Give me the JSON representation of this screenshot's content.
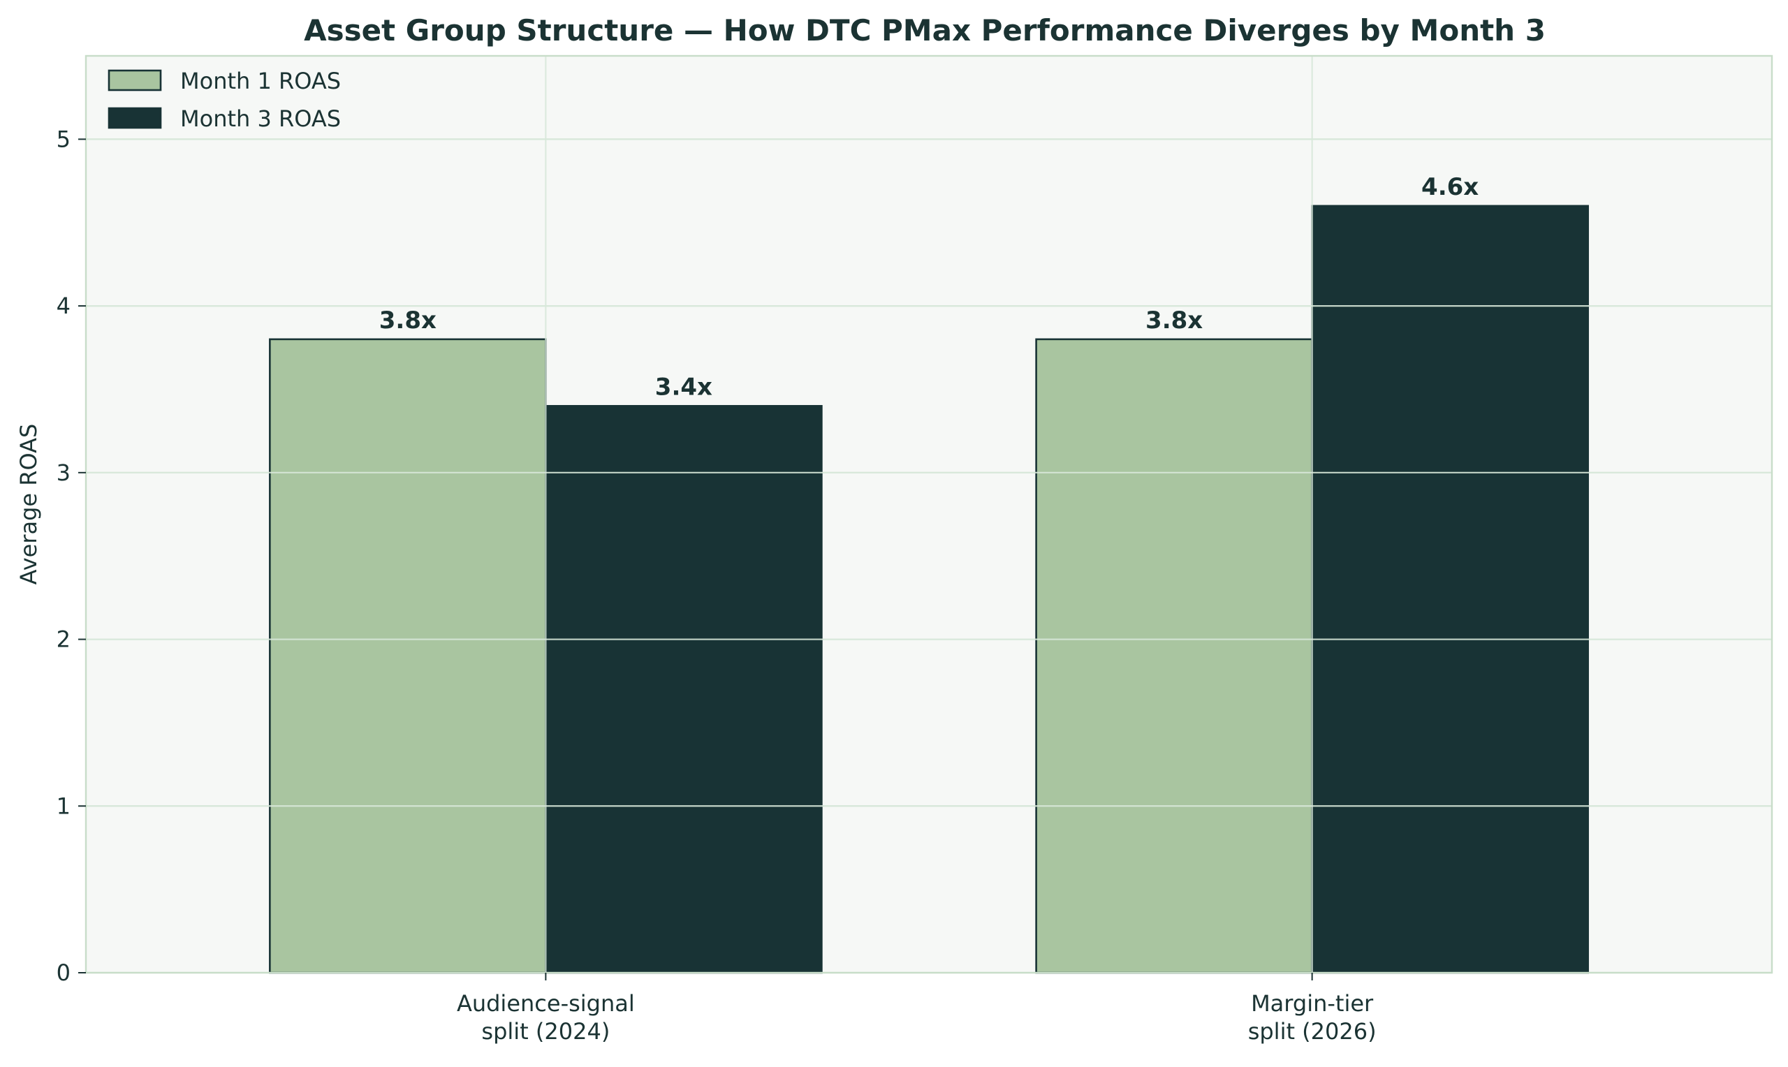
{
  "chart_data": {
    "type": "bar",
    "title": "Asset Group Structure — How DTC PMax Performance Diverges by Month 3",
    "xlabel": "",
    "ylabel": "Average ROAS",
    "categories": [
      [
        "Audience-signal",
        "split (2024)"
      ],
      [
        "Margin-tier",
        "split (2026)"
      ]
    ],
    "series": [
      {
        "name": "Month 1 ROAS",
        "values": [
          3.8,
          3.8
        ],
        "labels": [
          "3.8x",
          "3.8x"
        ],
        "color": "#a9c5a0"
      },
      {
        "name": "Month 3 ROAS",
        "values": [
          3.4,
          4.6
        ],
        "labels": [
          "3.4x",
          "4.6x"
        ],
        "color": "#183335"
      }
    ],
    "ylim": [
      0,
      5.5
    ],
    "yticks": [
      0,
      1,
      2,
      3,
      4,
      5
    ],
    "grid": true,
    "legend": "top-left",
    "colors": {
      "plot_background": "#f6f8f6",
      "grid": "#d8e8da",
      "spine": "#c8ddc9",
      "text": "#1b3333",
      "bar_edge": "#183335"
    }
  }
}
